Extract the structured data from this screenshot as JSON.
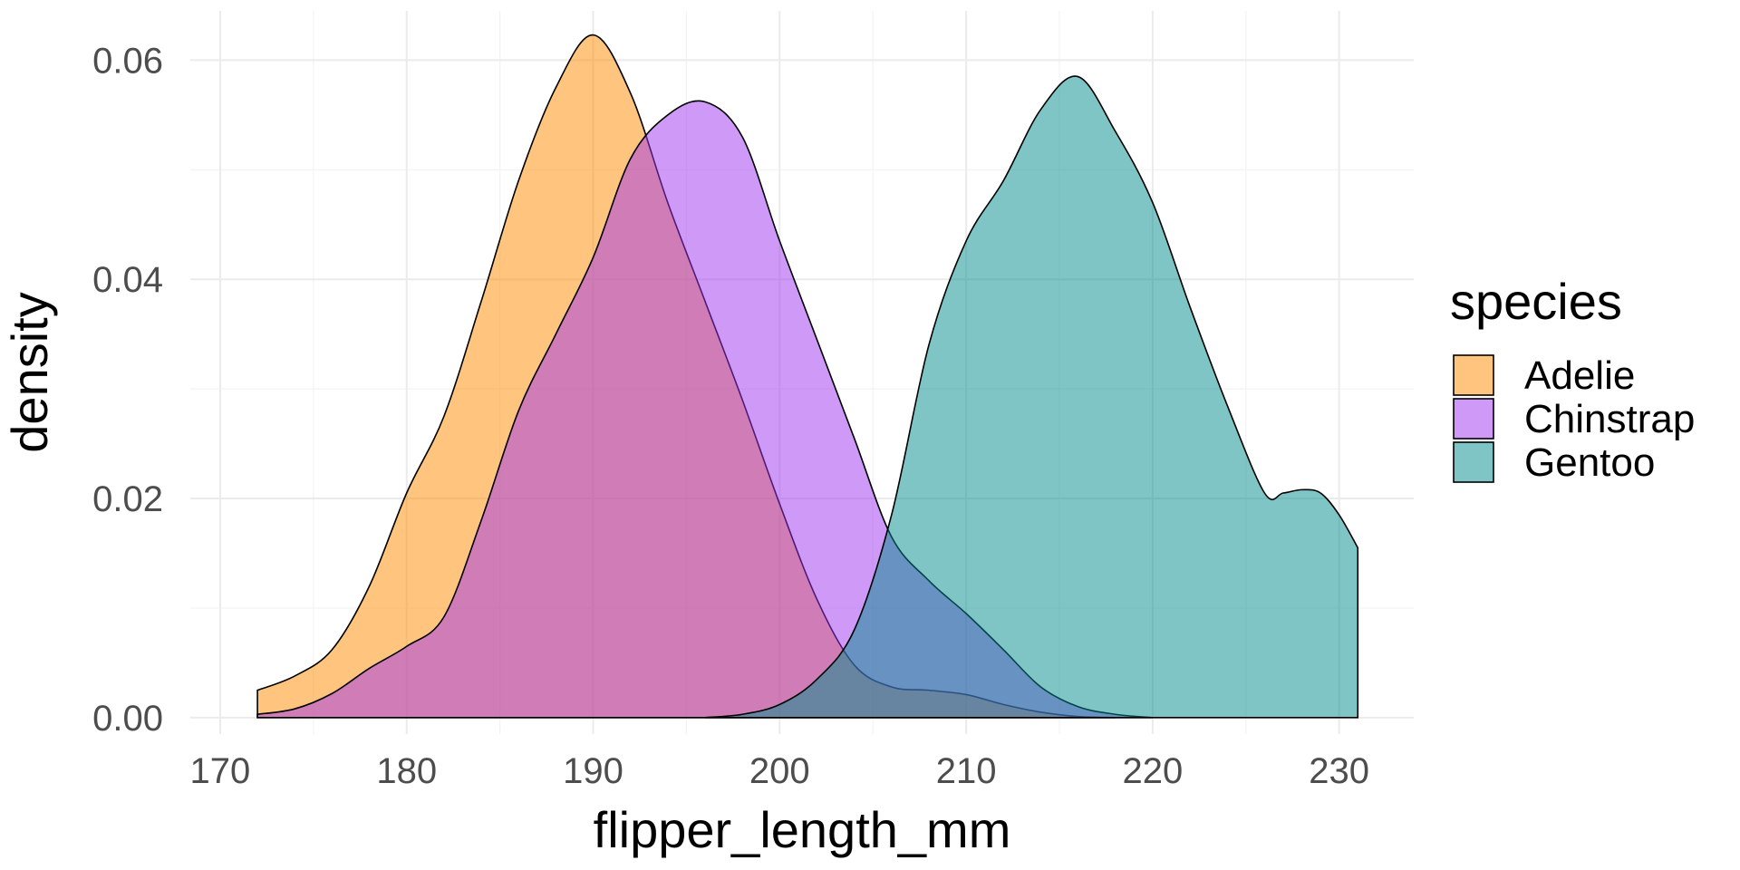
{
  "chart_data": {
    "type": "area",
    "title": "",
    "xlabel": "flipper_length_mm",
    "ylabel": "density",
    "xlim": [
      168.4,
      234.0
    ],
    "ylim": [
      -0.0015,
      0.0645
    ],
    "x_ticks": [
      170,
      180,
      190,
      200,
      210,
      220,
      230
    ],
    "x_tick_labels": [
      "170",
      "180",
      "190",
      "200",
      "210",
      "220",
      "230"
    ],
    "y_ticks": [
      0.0,
      0.02,
      0.04,
      0.06
    ],
    "y_tick_labels": [
      "0.00",
      "0.02",
      "0.04",
      "0.06"
    ],
    "grid": true,
    "legend": {
      "title": "species",
      "placement": "right"
    },
    "series": [
      {
        "name": "Adelie",
        "color": "#FF8C00",
        "x": [
          172,
          174,
          176,
          178,
          180,
          182,
          184,
          186,
          188,
          190,
          192,
          194,
          196,
          198,
          200,
          202,
          204,
          206,
          208,
          210,
          212,
          214,
          216,
          218
        ],
        "values": [
          0.0025,
          0.0038,
          0.0062,
          0.012,
          0.0205,
          0.0275,
          0.038,
          0.049,
          0.0575,
          0.0623,
          0.057,
          0.047,
          0.038,
          0.029,
          0.0195,
          0.0108,
          0.0048,
          0.0028,
          0.0025,
          0.0021,
          0.0012,
          0.0005,
          0.0001,
          0.0
        ]
      },
      {
        "name": "Chinstrap",
        "color": "#A034F0",
        "x": [
          172,
          174,
          176,
          178,
          180,
          182,
          184,
          186,
          188,
          190,
          192,
          194,
          196,
          198,
          200,
          202,
          204,
          206,
          208,
          210,
          212,
          214,
          216,
          218,
          220
        ],
        "values": [
          0.0003,
          0.0008,
          0.0022,
          0.0045,
          0.0065,
          0.0092,
          0.018,
          0.028,
          0.035,
          0.042,
          0.051,
          0.055,
          0.0562,
          0.053,
          0.0435,
          0.0345,
          0.0255,
          0.0165,
          0.0125,
          0.0095,
          0.0062,
          0.0028,
          0.001,
          0.0003,
          0.0
        ]
      },
      {
        "name": "Gentoo",
        "color": "#008B8B",
        "x": [
          196,
          198,
          200,
          202,
          204,
          206,
          208,
          210,
          212,
          214,
          216,
          218,
          220,
          222,
          224,
          226,
          227,
          228,
          229,
          230,
          231
        ],
        "values": [
          0.0,
          0.0003,
          0.0012,
          0.0035,
          0.008,
          0.0185,
          0.034,
          0.0435,
          0.049,
          0.0555,
          0.0585,
          0.0535,
          0.047,
          0.0375,
          0.0285,
          0.0205,
          0.0205,
          0.0208,
          0.0205,
          0.0185,
          0.0155
        ]
      }
    ]
  }
}
